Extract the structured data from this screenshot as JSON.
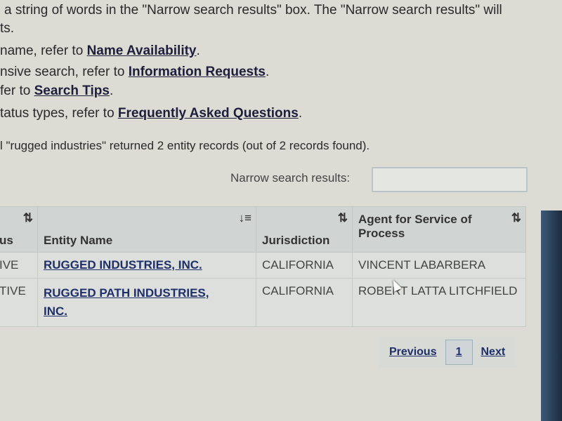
{
  "instructions": {
    "line1": "a string of words in the \"Narrow search results\" box. The \"Narrow search results\" will",
    "line2": "ts.",
    "line3_prefix": "name, refer to ",
    "line3_link": "Name Availability",
    "line4_prefix": "nsive search, refer to ",
    "line4_link": "Information Requests",
    "line5_prefix": "fer to ",
    "line5_link": "Search Tips",
    "line6_prefix": "tatus types, refer to ",
    "line6_link": "Frequently Asked Questions",
    "period": "."
  },
  "results_summary": "l \"rugged industries\" returned 2 entity records (out of 2 records found).",
  "narrow_search": {
    "label": "Narrow search results:",
    "value": ""
  },
  "table": {
    "headers": [
      "us",
      "Entity Name",
      "Jurisdiction",
      "Agent for Service of Process"
    ],
    "sort_icons": [
      "sort-icon",
      "sort-desc-icon",
      "sort-icon",
      "sort-icon"
    ],
    "rows": [
      {
        "status": "IVE",
        "entity_name": "RUGGED INDUSTRIES, INC.",
        "jurisdiction": "CALIFORNIA",
        "agent": "VINCENT LABARBERA"
      },
      {
        "status": "TIVE",
        "entity_name": "RUGGED PATH INDUSTRIES, INC.",
        "jurisdiction": "CALIFORNIA",
        "agent": "ROBERT LATTA LITCHFIELD"
      }
    ]
  },
  "pagination": {
    "previous": "Previous",
    "current": "1",
    "next": "Next"
  }
}
